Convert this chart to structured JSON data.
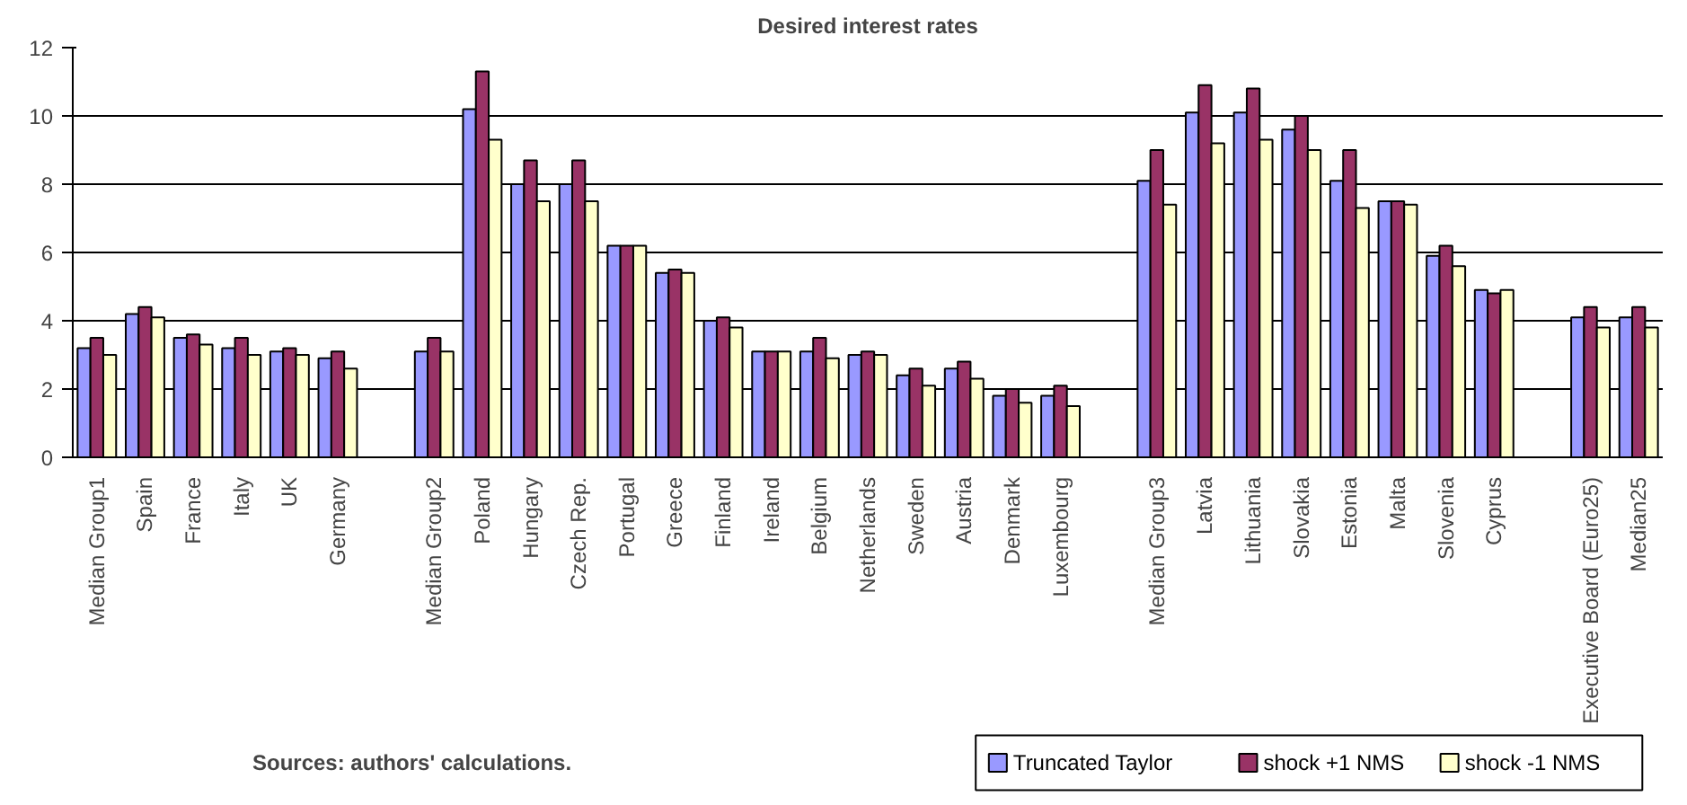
{
  "chart_data": {
    "type": "bar",
    "title": "Desired interest rates",
    "categories": [
      "Median Group1",
      "Spain",
      "France",
      "Italy",
      "UK",
      "Germany",
      null,
      "Median Group2",
      "Poland",
      "Hungary",
      "Czech Rep.",
      "Portugal",
      "Greece",
      "Finland",
      "Ireland",
      "Belgium",
      "Netherlands",
      "Sweden",
      "Austria",
      "Denmark",
      "Luxembourg",
      null,
      "Median Group3",
      "Latvia",
      "Lithuania",
      "Slovakia",
      "Estonia",
      "Malta",
      "Slovenia",
      "Cyprus",
      null,
      "Executive Board (Euro25)",
      "Median25"
    ],
    "series": [
      {
        "name": "Truncated Taylor",
        "color": "#9999ff",
        "values": [
          3.2,
          4.2,
          3.5,
          3.2,
          3.1,
          2.9,
          null,
          3.1,
          10.2,
          8.0,
          8.0,
          6.2,
          5.4,
          4.0,
          3.1,
          3.1,
          3.0,
          2.4,
          2.6,
          1.8,
          1.8,
          null,
          8.1,
          10.1,
          10.1,
          9.6,
          8.1,
          7.5,
          5.9,
          4.9,
          null,
          4.1,
          4.1
        ]
      },
      {
        "name": "shock +1 NMS",
        "color": "#993366",
        "values": [
          3.5,
          4.4,
          3.6,
          3.5,
          3.2,
          3.1,
          null,
          3.5,
          11.3,
          8.7,
          8.7,
          6.2,
          5.5,
          4.1,
          3.1,
          3.5,
          3.1,
          2.6,
          2.8,
          2.0,
          2.1,
          null,
          9.0,
          10.9,
          10.8,
          10.0,
          9.0,
          7.5,
          6.2,
          4.8,
          null,
          4.4,
          4.4
        ]
      },
      {
        "name": "shock -1 NMS",
        "color": "#ffffcc",
        "values": [
          3.0,
          4.1,
          3.3,
          3.0,
          3.0,
          2.6,
          null,
          3.1,
          9.3,
          7.5,
          7.5,
          6.2,
          5.4,
          3.8,
          3.1,
          2.9,
          3.0,
          2.1,
          2.3,
          1.6,
          1.5,
          null,
          7.4,
          9.2,
          9.3,
          9.0,
          7.3,
          7.4,
          5.6,
          4.9,
          null,
          3.8,
          3.8
        ]
      }
    ],
    "ylim": [
      0,
      12
    ],
    "yticks": [
      0,
      2,
      4,
      6,
      8,
      10,
      12
    ],
    "grid": "y",
    "legend": "bottom right",
    "annotations": [
      "Sources: authors' calculations."
    ]
  }
}
